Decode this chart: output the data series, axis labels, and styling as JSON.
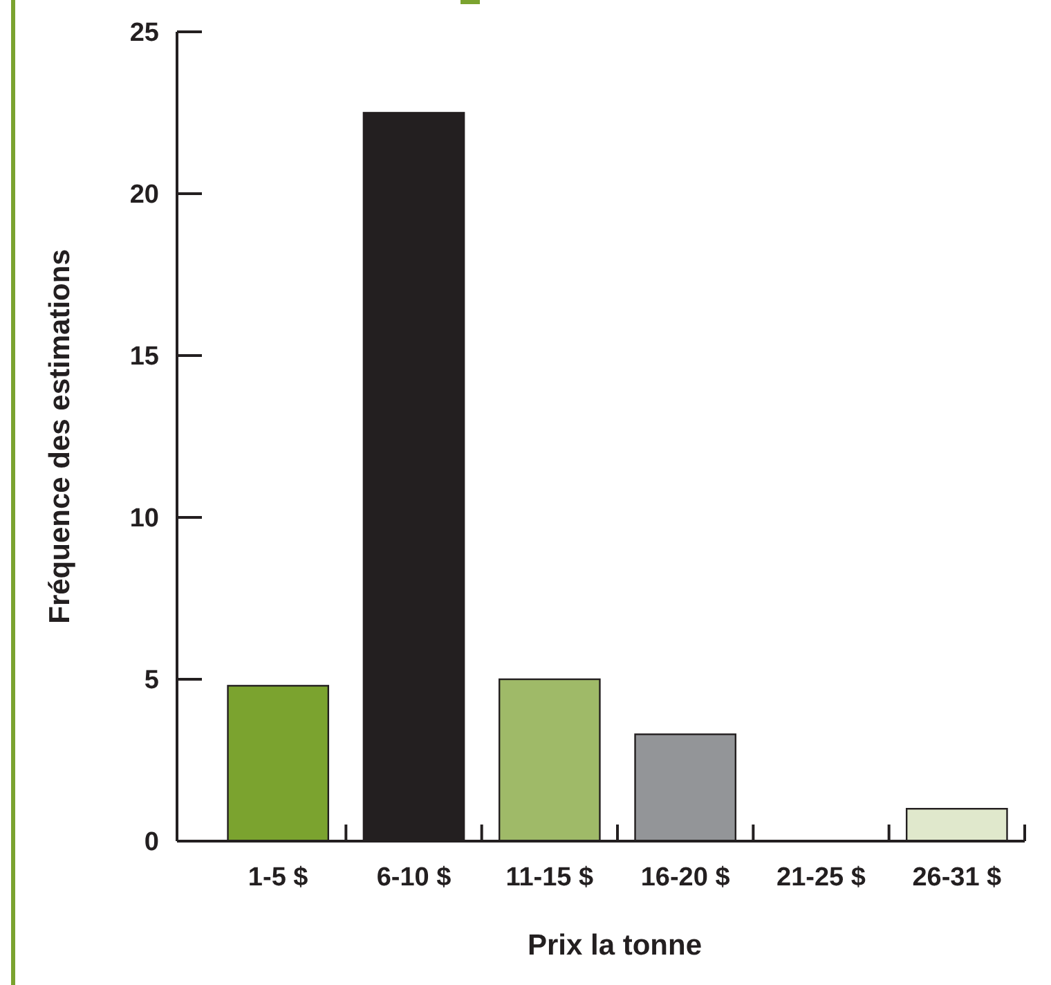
{
  "chart_data": {
    "type": "bar",
    "xlabel": "Prix la tonne",
    "ylabel": "Fréquence des estimations",
    "categories": [
      "1-5 $",
      "6-10 $",
      "11-15 $",
      "16-20 $",
      "21-25 $",
      "26-31 $"
    ],
    "values": [
      4.8,
      22.5,
      5,
      3.3,
      0,
      1
    ],
    "colors": [
      "#7ba32f",
      "#231f20",
      "#9fba68",
      "#939598",
      "#ffffff",
      "#e0e8cc"
    ],
    "ylim": [
      0,
      25
    ],
    "yticks": [
      0,
      5,
      10,
      15,
      20,
      25
    ],
    "grid": false
  }
}
